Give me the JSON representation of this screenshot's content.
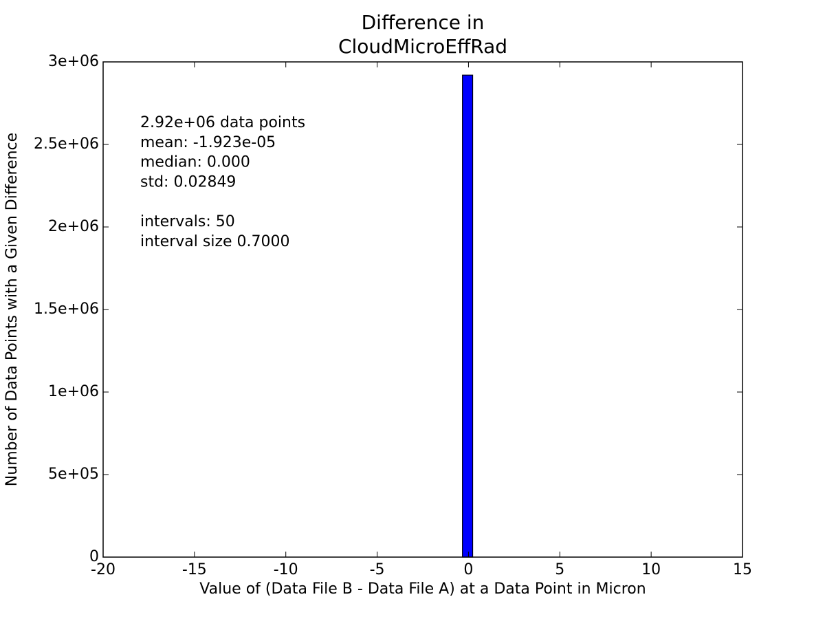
{
  "chart_data": {
    "type": "histogram",
    "title": [
      "Difference in",
      "CloudMicroEffRad"
    ],
    "xlabel": "Value of (Data File B - Data File A) at a Data Point in Micron",
    "ylabel": "Number of Data Points with a Given Difference",
    "annotations": [
      [
        "2.92e+06 data points",
        "mean: -1.923e-05",
        "median: 0.000",
        "std: 0.02849"
      ],
      [
        "intervals: 50",
        "interval size 0.7000"
      ]
    ],
    "bins": [
      -20,
      -19.3,
      -18.6,
      -17.9,
      -17.2,
      -16.5,
      -15.8,
      -15.1,
      -14.4,
      -13.7,
      -13,
      -12.3,
      -11.6,
      -10.9,
      -10.2,
      -9.5,
      -8.8,
      -8.1,
      -7.4,
      -6.7,
      -6,
      -5.3,
      -4.6,
      -3.9,
      -3.2,
      -2.5,
      -1.8,
      -1.1,
      -0.4,
      0.3,
      1,
      1.7,
      2.4,
      3.1,
      3.8,
      4.5,
      5.2,
      5.9,
      6.6,
      7.3,
      8,
      8.7,
      9.4,
      10.1,
      10.8,
      11.5,
      12.2,
      12.9,
      13.6,
      14.3,
      15
    ],
    "values": [
      0,
      0,
      0,
      0,
      0,
      0,
      0,
      0,
      0,
      0,
      0,
      0,
      0,
      0,
      0,
      0,
      0,
      0,
      0,
      0,
      0,
      0,
      0,
      0,
      0,
      0,
      0,
      0,
      2920000,
      0,
      0,
      0,
      0,
      0,
      0,
      0,
      0,
      0,
      0,
      0,
      0,
      0,
      0,
      0,
      0,
      0,
      0,
      0,
      0,
      0
    ],
    "rwidth": 0.8,
    "color": "#0000ff",
    "xlim": [
      -20,
      15
    ],
    "xticks": [
      -20,
      -15,
      -10,
      -5,
      0,
      5,
      10,
      15
    ],
    "ylim": [
      0,
      3000000
    ],
    "yticks": [
      0,
      {
        "value": 500000,
        "label": "5e+05"
      },
      {
        "value": 1000000,
        "label": "1e+06"
      },
      {
        "value": 1500000,
        "label": "1.5e+06"
      },
      {
        "value": 2000000,
        "label": "2e+06"
      },
      {
        "value": 2500000,
        "label": "2.5e+06"
      },
      {
        "value": 3000000,
        "label": "3e+06"
      }
    ]
  }
}
